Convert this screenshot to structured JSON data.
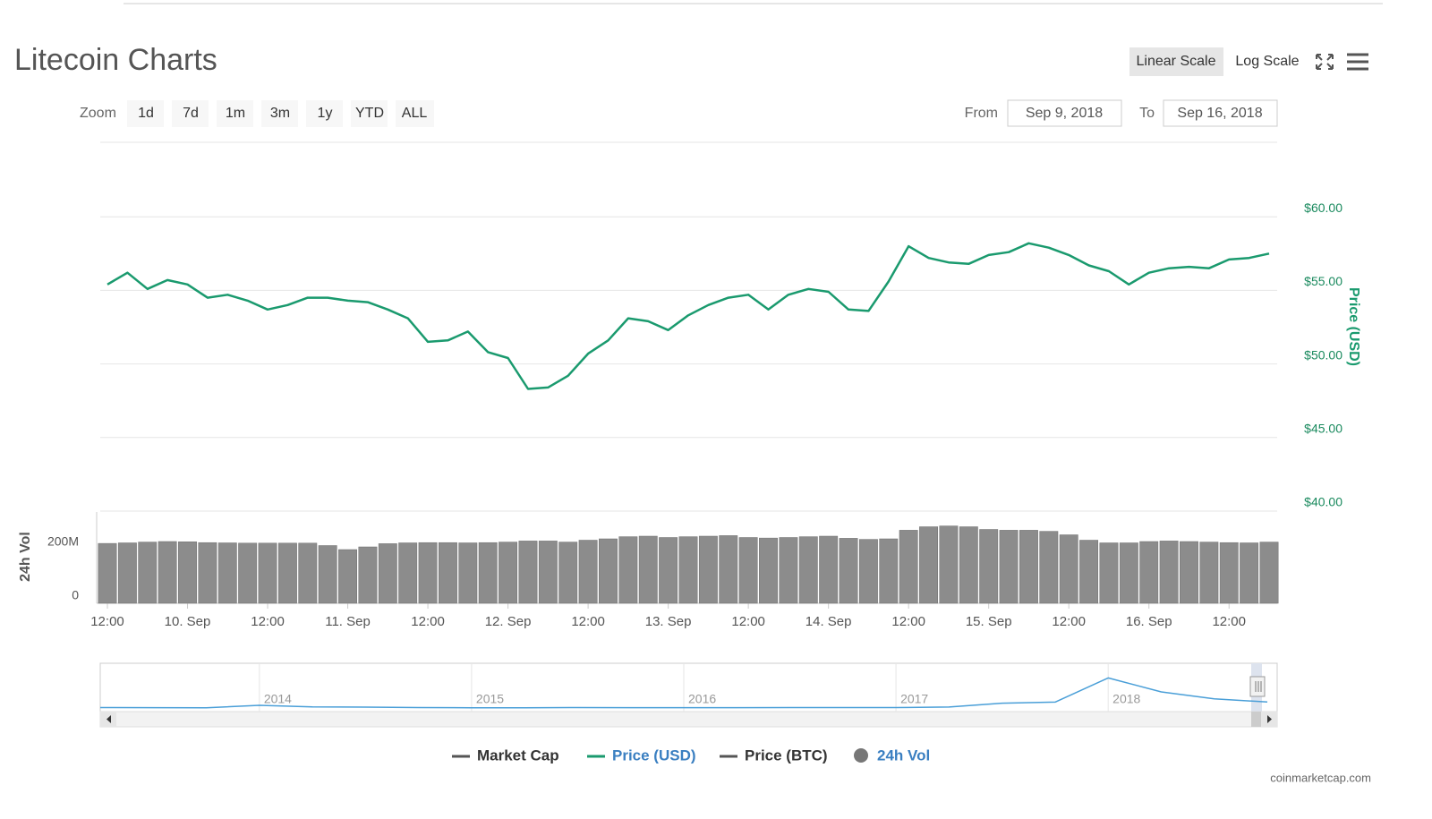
{
  "header": {
    "title": "Litecoin Charts",
    "scale_buttons": [
      "Linear Scale",
      "Log Scale"
    ]
  },
  "range_selector": {
    "zoom_label": "Zoom",
    "buttons": [
      "1d",
      "7d",
      "1m",
      "3m",
      "1y",
      "YTD",
      "ALL"
    ],
    "from_label": "From",
    "from": "Sep 9, 2018",
    "to_label": "To",
    "to": "Sep 16, 2018"
  },
  "legend": [
    "Market Cap",
    "Price (USD)",
    "Price (BTC)",
    "24h Vol"
  ],
  "credit": "coinmarketcap.com",
  "chart_data": [
    {
      "type": "line",
      "y_label": "Price (USD)",
      "color": "#1a9a6e",
      "values": [
        55.4,
        56.2,
        55.1,
        55.7,
        55.4,
        54.5,
        54.7,
        54.3,
        53.7,
        54.0,
        54.5,
        54.5,
        54.3,
        54.2,
        53.7,
        53.1,
        51.5,
        51.6,
        52.2,
        50.8,
        50.4,
        48.3,
        48.4,
        49.2,
        50.7,
        51.6,
        53.1,
        52.9,
        52.3,
        53.3,
        54.0,
        54.5,
        54.7,
        53.7,
        54.7,
        55.1,
        54.9,
        53.7,
        53.6,
        55.6,
        58.0,
        57.2,
        56.9,
        56.8,
        57.4,
        57.6,
        58.2,
        57.9,
        57.4,
        56.7,
        56.3,
        55.4,
        56.2,
        56.5,
        56.6,
        56.5,
        57.1,
        57.2,
        57.5
      ],
      "ylim": [
        40,
        65
      ],
      "yticks": [
        {
          "value": 40,
          "label": "$40.00"
        },
        {
          "value": 45,
          "label": "$45.00"
        },
        {
          "value": 50,
          "label": "$50.00"
        },
        {
          "value": 55,
          "label": "$55.00"
        },
        {
          "value": 60,
          "label": "$60.00"
        }
      ],
      "grid": true
    },
    {
      "type": "bar",
      "y_label": "24h Vol",
      "color": "#8c8c8c",
      "categories": [
        "12:00",
        null,
        null,
        null,
        "10. Sep",
        null,
        null,
        null,
        "12:00",
        null,
        null,
        null,
        "11. Sep",
        null,
        null,
        null,
        "12:00",
        null,
        null,
        null,
        "12. Sep",
        null,
        null,
        null,
        "12:00",
        null,
        null,
        null,
        "13. Sep",
        null,
        null,
        null,
        "12:00",
        null,
        null,
        null,
        "14. Sep",
        null,
        null,
        null,
        "12:00",
        null,
        null,
        null,
        "15. Sep",
        null,
        null,
        null,
        "12:00",
        null,
        null,
        null,
        "16. Sep",
        null,
        null,
        null,
        "12:00",
        null,
        null
      ],
      "values": [
        223000000,
        225000000,
        228000000,
        230000000,
        229000000,
        226000000,
        225000000,
        224000000,
        224000000,
        224000000,
        224000000,
        215000000,
        200000000,
        210000000,
        222000000,
        225000000,
        226000000,
        226000000,
        225000000,
        226000000,
        228000000,
        232000000,
        232000000,
        228000000,
        235000000,
        240000000,
        248000000,
        250000000,
        245000000,
        248000000,
        250000000,
        252000000,
        245000000,
        243000000,
        245000000,
        248000000,
        250000000,
        242000000,
        238000000,
        240000000,
        272000000,
        285000000,
        288000000,
        285000000,
        275000000,
        272000000,
        272000000,
        268000000,
        255000000,
        235000000,
        225000000,
        225000000,
        230000000,
        232000000,
        230000000,
        228000000,
        226000000,
        225000000,
        228000000
      ],
      "ylim": [
        0,
        340000000
      ],
      "yticks": [
        0,
        {
          "value": 200000000,
          "label": "200M"
        }
      ],
      "grid": false
    },
    {
      "type": "line",
      "color": "#4a9fd8",
      "categories": [
        null,
        null,
        null,
        "2014",
        null,
        null,
        null,
        "2015",
        null,
        null,
        null,
        "2016",
        null,
        null,
        null,
        "2017",
        null,
        null,
        null,
        "2018",
        null,
        null,
        null
      ],
      "values": [
        4,
        3,
        2.5,
        25,
        10,
        8,
        4,
        2.5,
        1.5,
        4,
        3,
        3.5,
        3.2,
        4,
        3.8,
        4.3,
        9,
        45,
        55,
        280,
        150,
        85,
        56
      ],
      "ylim": [
        0,
        400
      ],
      "grid": true
    }
  ]
}
